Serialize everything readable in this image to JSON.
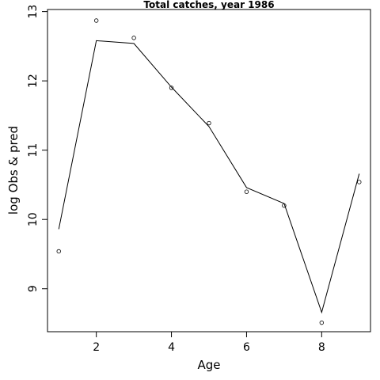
{
  "chart_data": {
    "type": "line",
    "title": "Total catches, year 1986",
    "xlabel": "Age",
    "ylabel": "log Obs & pred",
    "xlim": [
      0.7,
      9.3
    ],
    "ylim": [
      8.38,
      13.03
    ],
    "x_ticks": [
      2,
      4,
      6,
      8
    ],
    "y_ticks": [
      9,
      10,
      11,
      12,
      13
    ],
    "grid": false,
    "series": [
      {
        "style": "points",
        "x": [
          1,
          2,
          3,
          4,
          5,
          6,
          7,
          8,
          9
        ],
        "values": [
          9.54,
          12.87,
          12.62,
          11.9,
          11.39,
          10.4,
          10.2,
          8.51,
          10.54
        ]
      },
      {
        "style": "line",
        "x": [
          1,
          2,
          3,
          4,
          5,
          6,
          7,
          8,
          9
        ],
        "values": [
          9.86,
          12.58,
          12.54,
          11.91,
          11.34,
          10.46,
          10.23,
          8.66,
          10.66
        ]
      }
    ]
  }
}
